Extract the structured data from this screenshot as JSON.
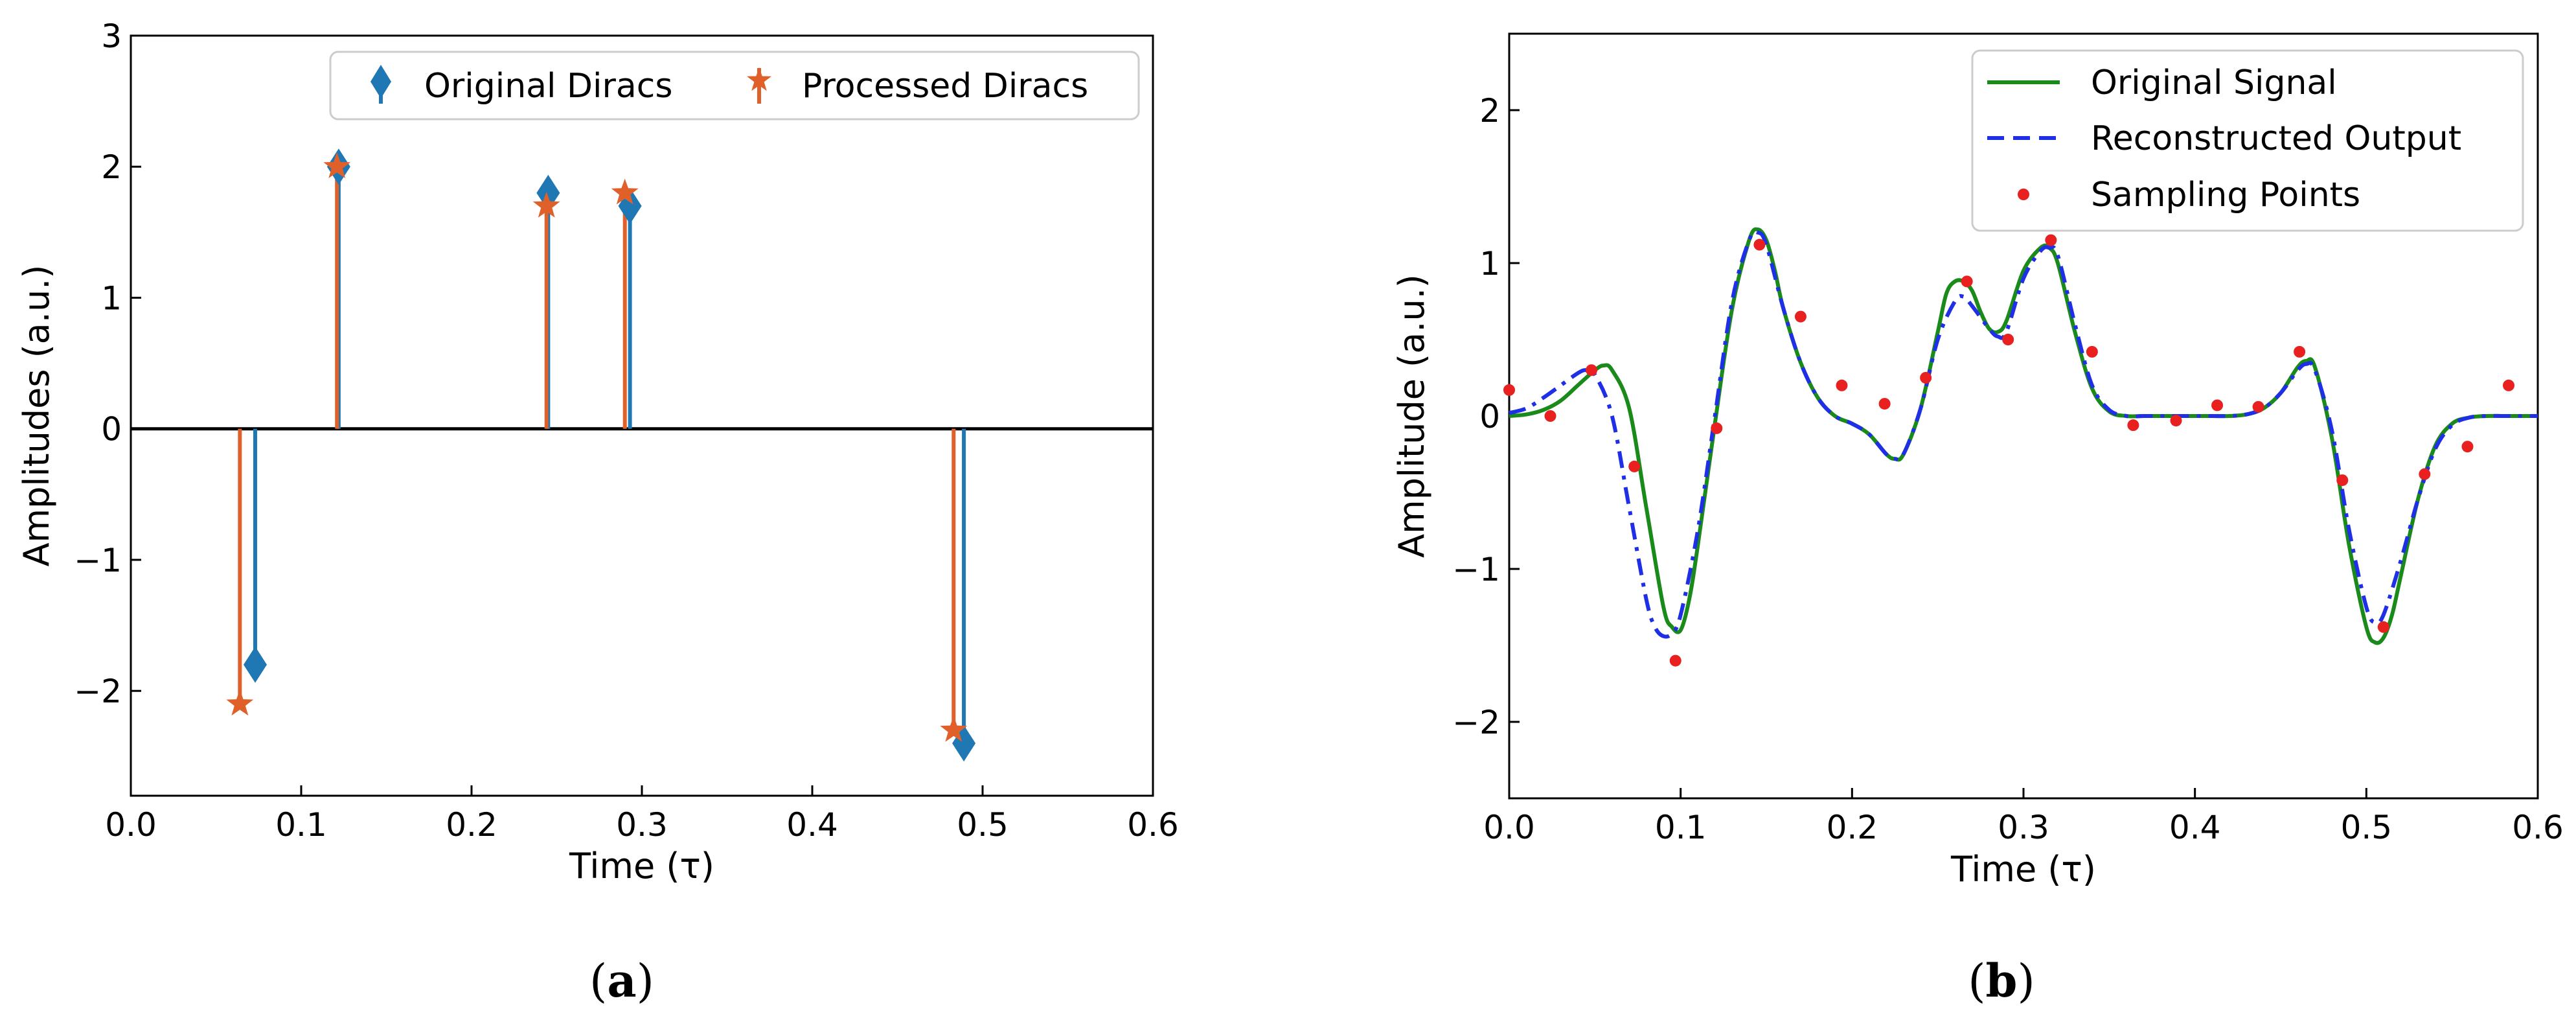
{
  "colors": {
    "original_dirac": "#1f77b4",
    "processed_dirac": "#e0602a",
    "original_signal": "#1a8a1a",
    "reconstructed": "#1f2fe6",
    "sampling": "#e82020",
    "axis": "#000000"
  },
  "chart_data": [
    {
      "type": "stem",
      "caption": "a",
      "title": "",
      "xlabel": "Time (τ)",
      "ylabel": "Amplitudes (a.u.)",
      "xlim": [
        0.0,
        0.6
      ],
      "ylim": [
        -2.8,
        3.0
      ],
      "xticks": [
        0.0,
        0.1,
        0.2,
        0.3,
        0.4,
        0.5,
        0.6
      ],
      "xtick_labels": [
        "0.0",
        "0.1",
        "0.2",
        "0.3",
        "0.4",
        "0.5",
        "0.6"
      ],
      "yticks": [
        -2,
        -1,
        0,
        1,
        2,
        3
      ],
      "ytick_labels": [
        "−2",
        "−1",
        "0",
        "1",
        "2",
        "3"
      ],
      "legend_position": "top-right",
      "series": [
        {
          "name": "Original Diracs",
          "marker": "diamond",
          "x": [
            0.073,
            0.122,
            0.245,
            0.293,
            0.489
          ],
          "y": [
            -1.8,
            2.0,
            1.8,
            1.7,
            -2.4
          ]
        },
        {
          "name": "Processed Diracs",
          "marker": "star",
          "x": [
            0.064,
            0.121,
            0.244,
            0.29,
            0.483
          ],
          "y": [
            -2.1,
            2.0,
            1.7,
            1.8,
            -2.3
          ]
        }
      ]
    },
    {
      "type": "line",
      "caption": "b",
      "title": "",
      "xlabel": "Time (τ)",
      "ylabel": "Amplitude (a.u.)",
      "xlim": [
        0.0,
        0.6
      ],
      "ylim": [
        -2.5,
        2.5
      ],
      "xticks": [
        0.0,
        0.1,
        0.2,
        0.3,
        0.4,
        0.5,
        0.6
      ],
      "xtick_labels": [
        "0.0",
        "0.1",
        "0.2",
        "0.3",
        "0.4",
        "0.5",
        "0.6"
      ],
      "yticks": [
        -2,
        -1,
        0,
        1,
        2
      ],
      "ytick_labels": [
        "−2",
        "−1",
        "0",
        "1",
        "2"
      ],
      "legend_position": "top-right",
      "series": [
        {
          "name": "Original Signal",
          "style": "solid",
          "x": [
            0.0,
            0.01,
            0.02,
            0.03,
            0.04,
            0.05,
            0.055,
            0.06,
            0.07,
            0.08,
            0.09,
            0.095,
            0.1,
            0.105,
            0.11,
            0.12,
            0.13,
            0.14,
            0.145,
            0.15,
            0.155,
            0.16,
            0.17,
            0.18,
            0.19,
            0.2,
            0.21,
            0.22,
            0.225,
            0.23,
            0.24,
            0.25,
            0.255,
            0.26,
            0.265,
            0.27,
            0.275,
            0.28,
            0.285,
            0.29,
            0.3,
            0.31,
            0.315,
            0.32,
            0.33,
            0.34,
            0.35,
            0.36,
            0.37,
            0.38,
            0.39,
            0.4,
            0.41,
            0.42,
            0.43,
            0.44,
            0.45,
            0.46,
            0.465,
            0.47,
            0.48,
            0.49,
            0.5,
            0.505,
            0.51,
            0.515,
            0.52,
            0.53,
            0.54,
            0.55,
            0.56,
            0.57,
            0.58,
            0.59,
            0.6
          ],
          "y": [
            0.0,
            0.01,
            0.04,
            0.1,
            0.2,
            0.3,
            0.33,
            0.3,
            0.05,
            -0.6,
            -1.25,
            -1.38,
            -1.4,
            -1.2,
            -0.85,
            -0.05,
            0.7,
            1.15,
            1.22,
            1.15,
            0.95,
            0.7,
            0.35,
            0.12,
            0.0,
            -0.05,
            -0.12,
            -0.25,
            -0.28,
            -0.25,
            0.05,
            0.55,
            0.8,
            0.88,
            0.88,
            0.82,
            0.68,
            0.57,
            0.55,
            0.62,
            0.95,
            1.1,
            1.1,
            1.0,
            0.55,
            0.18,
            0.03,
            0.0,
            0.0,
            0.0,
            0.0,
            0.0,
            0.0,
            0.0,
            0.01,
            0.05,
            0.15,
            0.32,
            0.36,
            0.32,
            -0.15,
            -0.85,
            -1.38,
            -1.48,
            -1.45,
            -1.3,
            -1.05,
            -0.55,
            -0.2,
            -0.05,
            -0.01,
            0.0,
            0.0,
            0.0,
            0.0
          ]
        },
        {
          "name": "Reconstructed Output",
          "style": "dashdot",
          "x": [
            0.0,
            0.01,
            0.02,
            0.03,
            0.04,
            0.045,
            0.05,
            0.06,
            0.07,
            0.08,
            0.085,
            0.09,
            0.095,
            0.1,
            0.11,
            0.12,
            0.13,
            0.14,
            0.145,
            0.15,
            0.16,
            0.17,
            0.18,
            0.19,
            0.2,
            0.21,
            0.22,
            0.225,
            0.23,
            0.24,
            0.25,
            0.26,
            0.265,
            0.27,
            0.28,
            0.285,
            0.29,
            0.3,
            0.31,
            0.315,
            0.32,
            0.33,
            0.34,
            0.35,
            0.36,
            0.37,
            0.38,
            0.39,
            0.4,
            0.41,
            0.42,
            0.43,
            0.44,
            0.45,
            0.46,
            0.465,
            0.47,
            0.48,
            0.49,
            0.5,
            0.505,
            0.51,
            0.52,
            0.53,
            0.54,
            0.55,
            0.56,
            0.57,
            0.58,
            0.59,
            0.6
          ],
          "y": [
            0.02,
            0.05,
            0.12,
            0.2,
            0.28,
            0.3,
            0.27,
            0.0,
            -0.6,
            -1.2,
            -1.38,
            -1.44,
            -1.42,
            -1.3,
            -0.75,
            0.0,
            0.75,
            1.15,
            1.2,
            1.12,
            0.7,
            0.35,
            0.12,
            0.0,
            -0.05,
            -0.12,
            -0.25,
            -0.28,
            -0.25,
            0.05,
            0.5,
            0.75,
            0.78,
            0.72,
            0.57,
            0.52,
            0.55,
            0.9,
            1.08,
            1.1,
            1.05,
            0.6,
            0.2,
            0.04,
            0.0,
            0.0,
            0.0,
            0.0,
            0.0,
            0.0,
            0.0,
            0.01,
            0.05,
            0.15,
            0.3,
            0.34,
            0.3,
            -0.1,
            -0.75,
            -1.25,
            -1.35,
            -1.3,
            -0.95,
            -0.55,
            -0.22,
            -0.06,
            -0.01,
            0.0,
            0.0,
            0.0,
            0.0
          ]
        },
        {
          "name": "Sampling Points",
          "style": "dots",
          "x": [
            0.0,
            0.024,
            0.048,
            0.073,
            0.097,
            0.121,
            0.146,
            0.17,
            0.194,
            0.219,
            0.243,
            0.267,
            0.291,
            0.316,
            0.34,
            0.364,
            0.389,
            0.413,
            0.437,
            0.461,
            0.486,
            0.51,
            0.534,
            0.559,
            0.583
          ],
          "y": [
            0.17,
            0.0,
            0.3,
            -0.33,
            -1.6,
            -0.08,
            1.12,
            0.65,
            0.2,
            0.08,
            0.25,
            0.88,
            0.5,
            1.15,
            0.42,
            -0.06,
            -0.03,
            0.07,
            0.06,
            0.42,
            -0.42,
            -1.38,
            -0.38,
            -0.2,
            0.2
          ]
        }
      ]
    }
  ]
}
